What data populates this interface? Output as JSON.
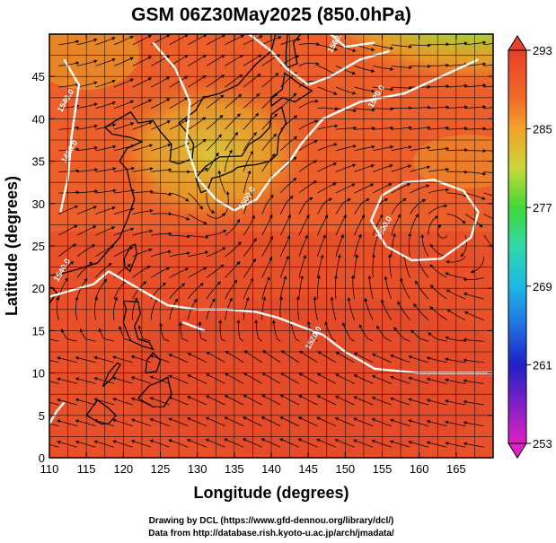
{
  "chart_data": {
    "type": "heatmap",
    "title": "GSM 06Z30May2025 (850.0hPa)",
    "xlabel": "Longitude (degrees)",
    "ylabel": "Latitude  (degrees)",
    "xlim": [
      110,
      170
    ],
    "ylim": [
      0,
      50
    ],
    "x_ticks": [
      "110",
      "115",
      "120",
      "125",
      "130",
      "135",
      "140",
      "145",
      "150",
      "155",
      "160",
      "165"
    ],
    "x_tick_values": [
      110,
      115,
      120,
      125,
      130,
      135,
      140,
      145,
      150,
      155,
      160,
      165
    ],
    "y_ticks": [
      "0",
      "5",
      "10",
      "15",
      "20",
      "25",
      "30",
      "35",
      "40",
      "45"
    ],
    "y_tick_values": [
      0,
      5,
      10,
      15,
      20,
      25,
      30,
      35,
      40,
      45
    ],
    "grid": true,
    "colorbar": {
      "min": 253,
      "max": 293,
      "ticks": [
        "293",
        "285",
        "277",
        "269",
        "261",
        "253"
      ],
      "tick_values": [
        293,
        285,
        277,
        269,
        261,
        253
      ],
      "placement": "right"
    },
    "contour_labels": [
      "1540.0",
      "1480.0",
      "1500.0",
      "1520.0",
      "1500.0",
      "1520.0",
      "1560.0",
      "1540.0"
    ],
    "colors": {
      "warm_red": "#e8402a",
      "orange": "#f08a2a",
      "yellow_green": "#b8d83a",
      "green": "#48d838",
      "contour": "#ffffff",
      "vectors": "#000000"
    }
  },
  "credits": {
    "line1": "Drawing by DCL (https://www.gfd-dennou.org/library/dcl/)",
    "line2": "Data from http://database.rish.kyoto-u.ac.jp/arch/jmadata/"
  }
}
